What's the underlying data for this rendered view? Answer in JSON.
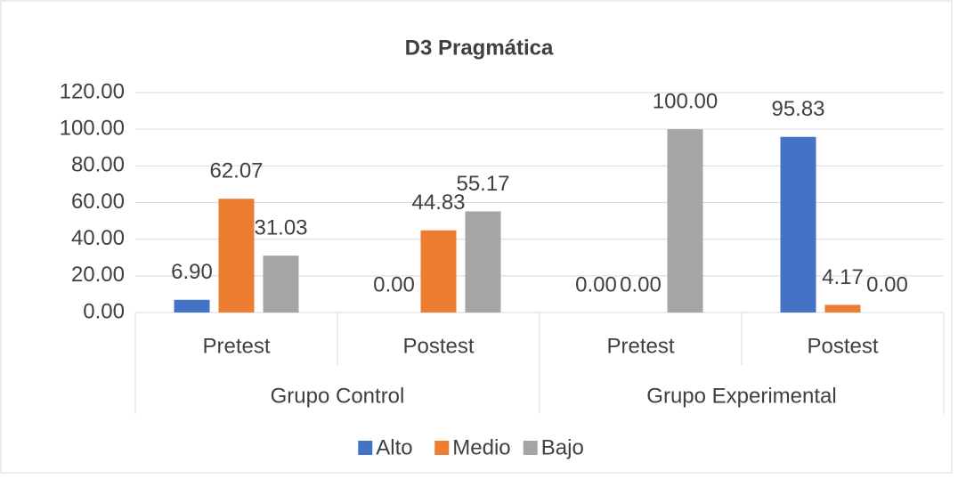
{
  "chart_data": {
    "type": "bar",
    "title": "D3 Pragmática",
    "categories": [
      "Pretest",
      "Postest",
      "Pretest",
      "Postest"
    ],
    "groups": [
      "Grupo Control",
      "Grupo Experimental"
    ],
    "series": [
      {
        "name": "Alto",
        "color": "#4472c4",
        "values": [
          6.9,
          0,
          0,
          95.83
        ],
        "value_labels": [
          "6.90",
          "0.00",
          "0.00",
          "95.83"
        ]
      },
      {
        "name": "Medio",
        "color": "#ed7d31",
        "values": [
          62.07,
          44.83,
          0,
          4.17
        ],
        "value_labels": [
          "62.07",
          "44.83",
          "0.00",
          "4.17"
        ]
      },
      {
        "name": "Bajo",
        "color": "#a5a5a5",
        "values": [
          31.03,
          55.17,
          100,
          0
        ],
        "value_labels": [
          "31.03",
          "55.17",
          "100.00",
          "0.00"
        ]
      }
    ],
    "ylim": [
      0,
      120
    ],
    "yticks": [
      {
        "value": 0,
        "label": "0.00"
      },
      {
        "value": 20,
        "label": "20.00"
      },
      {
        "value": 40,
        "label": "40.00"
      },
      {
        "value": 60,
        "label": "60.00"
      },
      {
        "value": 80,
        "label": "80.00"
      },
      {
        "value": 100,
        "label": "100.00"
      },
      {
        "value": 120,
        "label": "120.00"
      }
    ],
    "grid": true,
    "legend": "bottom"
  }
}
